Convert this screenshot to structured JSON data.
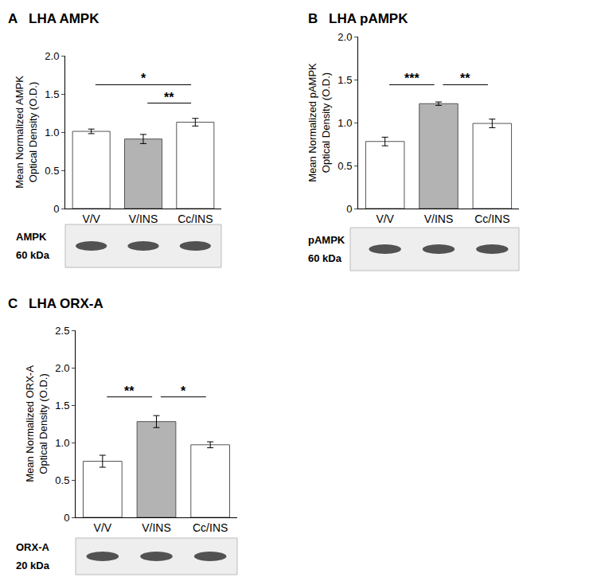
{
  "chart_data": [
    {
      "type": "bar",
      "panel": "A",
      "title": "LHA AMPK",
      "ylabel": [
        "Mean Normalized AMPK",
        "Optical Density (O.D.)"
      ],
      "categories": [
        "V/V",
        "V/INS",
        "Cc/INS"
      ],
      "values": [
        1.01,
        0.91,
        1.13
      ],
      "errors": [
        0.03,
        0.06,
        0.05
      ],
      "colors": [
        "#ffffff",
        "#b3b3b3",
        "#ffffff"
      ],
      "ylim": [
        0,
        2
      ],
      "yticks": [
        0,
        0.5,
        {
          "value": 1,
          "label": "1.0"
        },
        1.5,
        {
          "value": 2,
          "label": "2.0"
        }
      ],
      "grid": false,
      "significance": [
        {
          "from": "V/INS",
          "to": "Cc/INS",
          "label": "**"
        },
        {
          "from": "V/V",
          "to": "Cc/INS",
          "label": "*"
        }
      ],
      "blot": {
        "label": "AMPK",
        "size": "60 kDa"
      }
    },
    {
      "type": "bar",
      "panel": "B",
      "title": "LHA pAMPK",
      "ylabel": [
        "Mean Normalized pAMPK",
        "Optical Density (O.D.)"
      ],
      "categories": [
        "V/V",
        "V/INS",
        "Cc/INS"
      ],
      "values": [
        0.78,
        1.22,
        0.99
      ],
      "errors": [
        0.05,
        0.02,
        0.05
      ],
      "colors": [
        "#ffffff",
        "#b3b3b3",
        "#ffffff"
      ],
      "ylim": [
        0,
        2
      ],
      "yticks": [
        0,
        0.5,
        {
          "value": 1,
          "label": "1.0"
        },
        1.5,
        {
          "value": 2,
          "label": "2.0"
        }
      ],
      "grid": false,
      "significance": [
        {
          "from": "V/V",
          "to": "V/INS",
          "label": "***"
        },
        {
          "from": "V/INS",
          "to": "Cc/INS",
          "label": "**"
        }
      ],
      "blot": {
        "label": "pAMPK",
        "size": "60 kDa"
      }
    },
    {
      "type": "bar",
      "panel": "C",
      "title": "LHA ORX-A",
      "ylabel": [
        "Mean Normalized ORX-A",
        "Optical Density (O.D.)"
      ],
      "categories": [
        "V/V",
        "V/INS",
        "Cc/INS"
      ],
      "values": [
        0.75,
        1.28,
        0.97
      ],
      "errors": [
        0.08,
        0.08,
        0.04
      ],
      "colors": [
        "#ffffff",
        "#b3b3b3",
        "#ffffff"
      ],
      "ylim": [
        0,
        2.5
      ],
      "yticks": [
        0,
        0.5,
        {
          "value": 1,
          "label": "1.0"
        },
        1.5,
        {
          "value": 2,
          "label": "2.0"
        },
        2.5
      ],
      "grid": false,
      "significance": [
        {
          "from": "V/V",
          "to": "V/INS",
          "label": "**"
        },
        {
          "from": "V/INS",
          "to": "Cc/INS",
          "label": "*"
        }
      ],
      "blot": {
        "label": "ORX-A",
        "size": "20 kDa"
      }
    }
  ]
}
